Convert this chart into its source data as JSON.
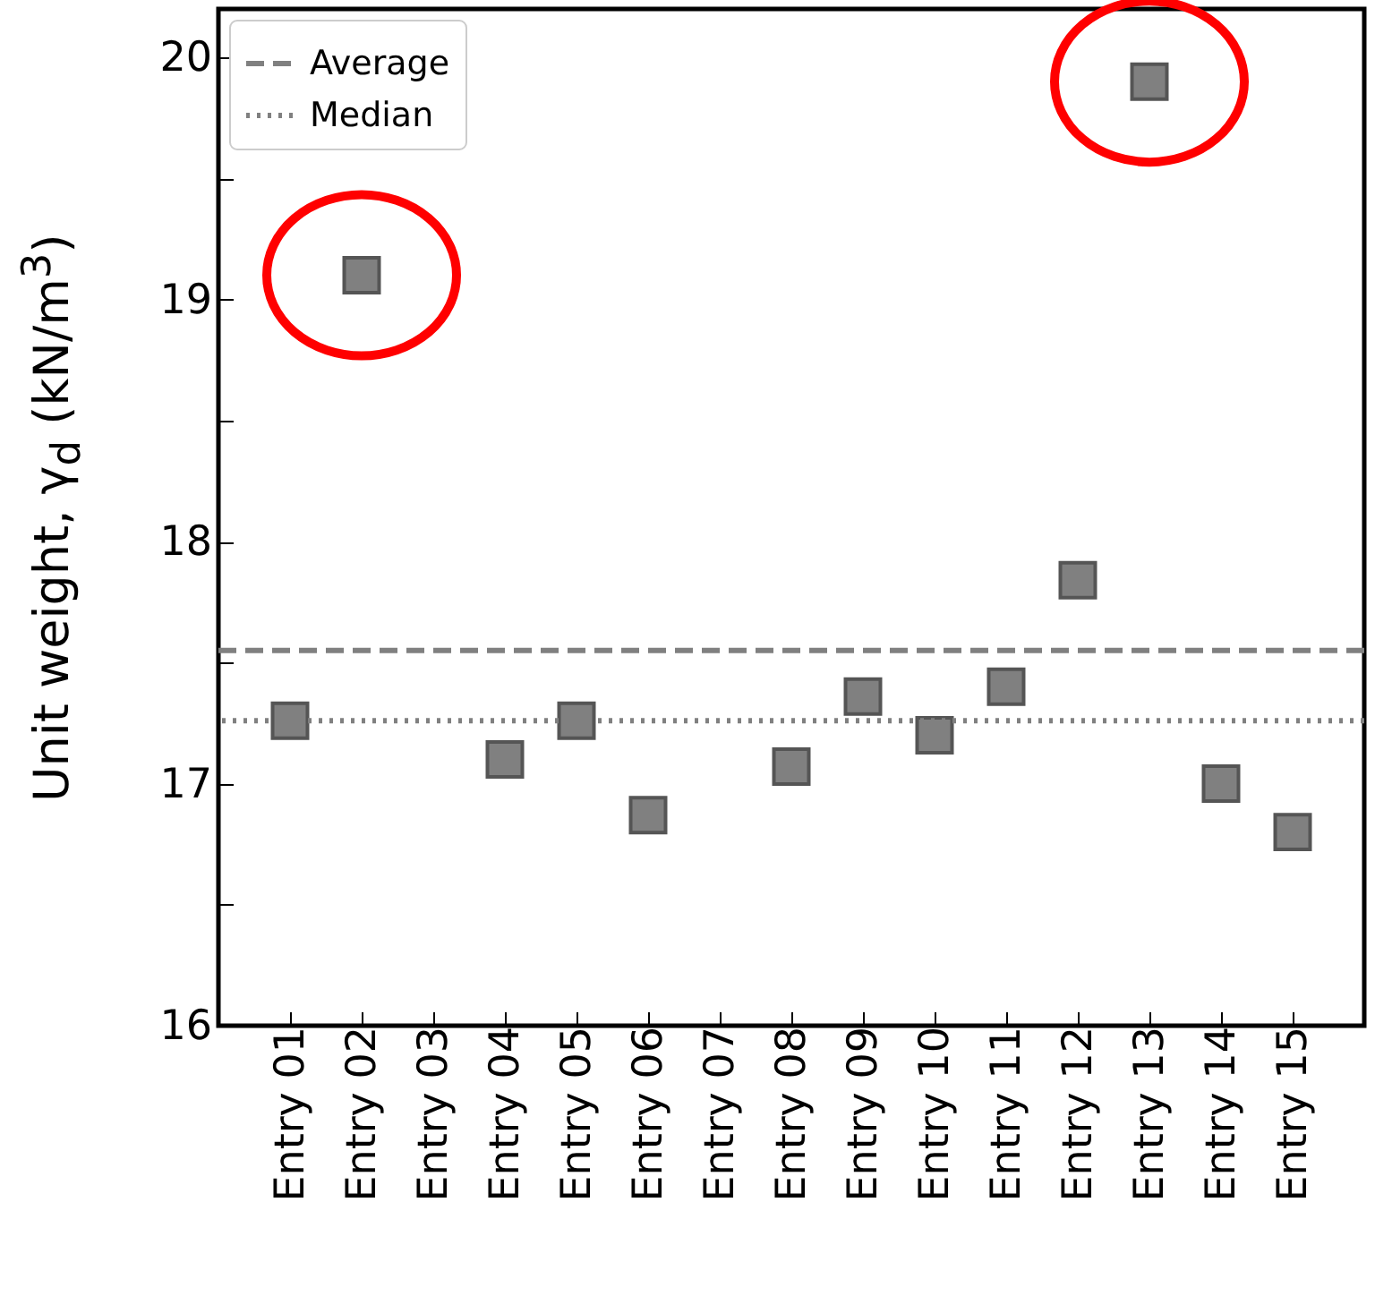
{
  "chart_data": {
    "type": "scatter",
    "ylabel": "Unit weight, γ$_{d}$ (kN/m$^{3}$)",
    "categories": [
      "Entry 01",
      "Entry 02",
      "Entry 03",
      "Entry 04",
      "Entry 05",
      "Entry 06",
      "Entry 07",
      "Entry 08",
      "Entry 09",
      "Entry 10",
      "Entry 11",
      "Entry 12",
      "Entry 13",
      "Entry 14",
      "Entry 15"
    ],
    "series": [
      {
        "color": "#808080",
        "values": [
          17.26,
          19.1,
          null,
          17.1,
          17.26,
          16.87,
          null,
          17.07,
          17.36,
          17.2,
          17.4,
          17.84,
          19.9,
          17.0,
          16.8
        ]
      }
    ],
    "marker": "square",
    "ylim": [
      16,
      20.2
    ],
    "yticks": [
      16,
      {
        "value": 16.5,
        "label": null
      },
      17,
      {
        "value": 17.5,
        "label": null
      },
      18,
      {
        "value": 18.5,
        "label": null
      },
      19,
      {
        "value": 19.5,
        "label": null
      },
      20
    ],
    "ref_lines": [
      {
        "axis": "y",
        "value": 17.55,
        "label": "Average",
        "color": "#808080",
        "line_style": "dashed"
      },
      {
        "axis": "y",
        "value": 17.26,
        "label": "Median",
        "color": "#808080",
        "line_style": "dotted"
      }
    ],
    "legend": "top left",
    "grid": false
  }
}
